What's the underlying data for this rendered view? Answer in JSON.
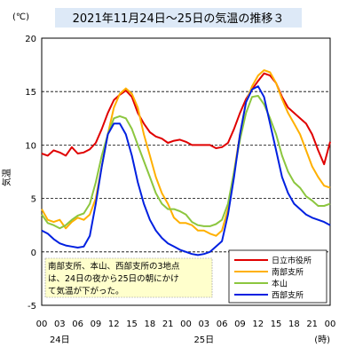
{
  "chart_data": {
    "type": "line",
    "title": "2021年11月24日～25日の気温の推移３",
    "ylabel": "気温",
    "unit_label": "(℃)",
    "time_unit_label": "(時)",
    "ylim": [
      -5,
      20
    ],
    "yticks": [
      -5,
      0,
      5,
      10,
      15,
      20
    ],
    "dashed_y": [
      0,
      5,
      10,
      15
    ],
    "xlim": [
      0,
      48
    ],
    "xtick_labels": [
      "00",
      "03",
      "06",
      "09",
      "12",
      "15",
      "18",
      "21",
      "00",
      "03",
      "06",
      "09",
      "12",
      "15",
      "18",
      "21",
      "00"
    ],
    "day_labels": [
      {
        "label": "24日",
        "x": 3
      },
      {
        "label": "25日",
        "x": 27
      }
    ],
    "annotation": "南部支所、本山、西部支所の3地点は、24日の夜から25日の朝にかけて気温が下がった。",
    "annotation_lines": [
      "南部支所、本山、西部支所の3地点",
      "は、24日の夜から25日の朝にかけ",
      "て気温が下がった。"
    ],
    "series": [
      {
        "name": "日立市役所",
        "color": "#e00000",
        "x": [
          0,
          1,
          2,
          3,
          4,
          5,
          6,
          7,
          8,
          9,
          10,
          11,
          12,
          13,
          14,
          15,
          16,
          17,
          18,
          19,
          20,
          21,
          22,
          23,
          24,
          25,
          26,
          27,
          28,
          29,
          30,
          31,
          32,
          33,
          34,
          35,
          36,
          37,
          38,
          39,
          40,
          41,
          42,
          43,
          44,
          45,
          46,
          47,
          48
        ],
        "y": [
          9.2,
          9,
          9.5,
          9.3,
          9,
          9.8,
          9.2,
          9.3,
          9.6,
          10.2,
          11.5,
          13,
          14.2,
          14.7,
          15.1,
          14.5,
          13,
          12,
          11.2,
          10.8,
          10.6,
          10.2,
          10.4,
          10.5,
          10.3,
          10,
          10,
          10,
          10,
          9.7,
          9.8,
          10.2,
          11.5,
          13,
          14.3,
          15.2,
          16,
          16.7,
          16.5,
          15.8,
          14.5,
          13.5,
          13,
          12.5,
          12,
          11,
          9.5,
          8.2,
          10.3
        ]
      },
      {
        "name": "南部支所",
        "color": "#ffb000",
        "x": [
          0,
          1,
          2,
          3,
          4,
          5,
          6,
          7,
          8,
          9,
          10,
          11,
          12,
          13,
          14,
          15,
          16,
          17,
          18,
          19,
          20,
          21,
          22,
          23,
          24,
          25,
          26,
          27,
          28,
          29,
          30,
          31,
          32,
          33,
          34,
          35,
          36,
          37,
          38,
          39,
          40,
          41,
          42,
          43,
          44,
          45,
          46,
          47,
          48
        ],
        "y": [
          4,
          3,
          2.8,
          3,
          2.2,
          2.8,
          3.2,
          3,
          3.5,
          5,
          8,
          11,
          13.5,
          14.8,
          15.3,
          14.8,
          13.5,
          11,
          9,
          7,
          5.5,
          4.5,
          3.2,
          2.7,
          2.7,
          2.5,
          2,
          2,
          1.7,
          1.5,
          2,
          4,
          7.5,
          11,
          14,
          15.5,
          16.5,
          17,
          16.8,
          15.8,
          14.3,
          13,
          12,
          11,
          9.5,
          8,
          7,
          6.2,
          6
        ]
      },
      {
        "name": "本山",
        "color": "#8cc63f",
        "x": [
          0,
          1,
          2,
          3,
          4,
          5,
          6,
          7,
          8,
          9,
          10,
          11,
          12,
          13,
          14,
          15,
          16,
          17,
          18,
          19,
          20,
          21,
          22,
          23,
          24,
          25,
          26,
          27,
          28,
          29,
          30,
          31,
          32,
          33,
          34,
          35,
          36,
          37,
          38,
          39,
          40,
          41,
          42,
          43,
          44,
          45,
          46,
          47,
          48
        ],
        "y": [
          3.5,
          2.7,
          2.5,
          2.2,
          2.5,
          3,
          3.4,
          3.6,
          4.5,
          6.5,
          9,
          11,
          12.5,
          12.7,
          12.5,
          11.5,
          10,
          8.5,
          7,
          5.5,
          4.5,
          4,
          4,
          3.8,
          3.5,
          2.8,
          2.5,
          2.4,
          2.4,
          2.6,
          3,
          4.5,
          7.5,
          10.5,
          13,
          14.5,
          14.6,
          13.8,
          12.5,
          11,
          9,
          7.5,
          6.5,
          6,
          5.2,
          4.8,
          4.3,
          4.3,
          4.5
        ]
      },
      {
        "name": "西部支所",
        "color": "#0020e0",
        "x": [
          0,
          1,
          2,
          3,
          4,
          5,
          6,
          7,
          8,
          9,
          10,
          11,
          12,
          13,
          14,
          15,
          16,
          17,
          18,
          19,
          20,
          21,
          22,
          23,
          24,
          25,
          26,
          27,
          28,
          29,
          30,
          31,
          32,
          33,
          34,
          35,
          36,
          37,
          38,
          39,
          40,
          41,
          42,
          43,
          44,
          45,
          46,
          47,
          48
        ],
        "y": [
          2,
          1.7,
          1.2,
          0.8,
          0.6,
          0.5,
          0.4,
          0.5,
          1.5,
          4.5,
          8,
          11,
          12,
          12,
          11,
          9,
          6.5,
          4.5,
          3,
          2,
          1.3,
          0.8,
          0.5,
          0.2,
          0,
          -0.2,
          -0.3,
          -0.2,
          0,
          0.5,
          1,
          3.5,
          7,
          11,
          14,
          15.2,
          15.5,
          14.5,
          12,
          9.5,
          7,
          5.5,
          4.5,
          4,
          3.5,
          3.2,
          3,
          2.8,
          2.5
        ]
      }
    ]
  }
}
